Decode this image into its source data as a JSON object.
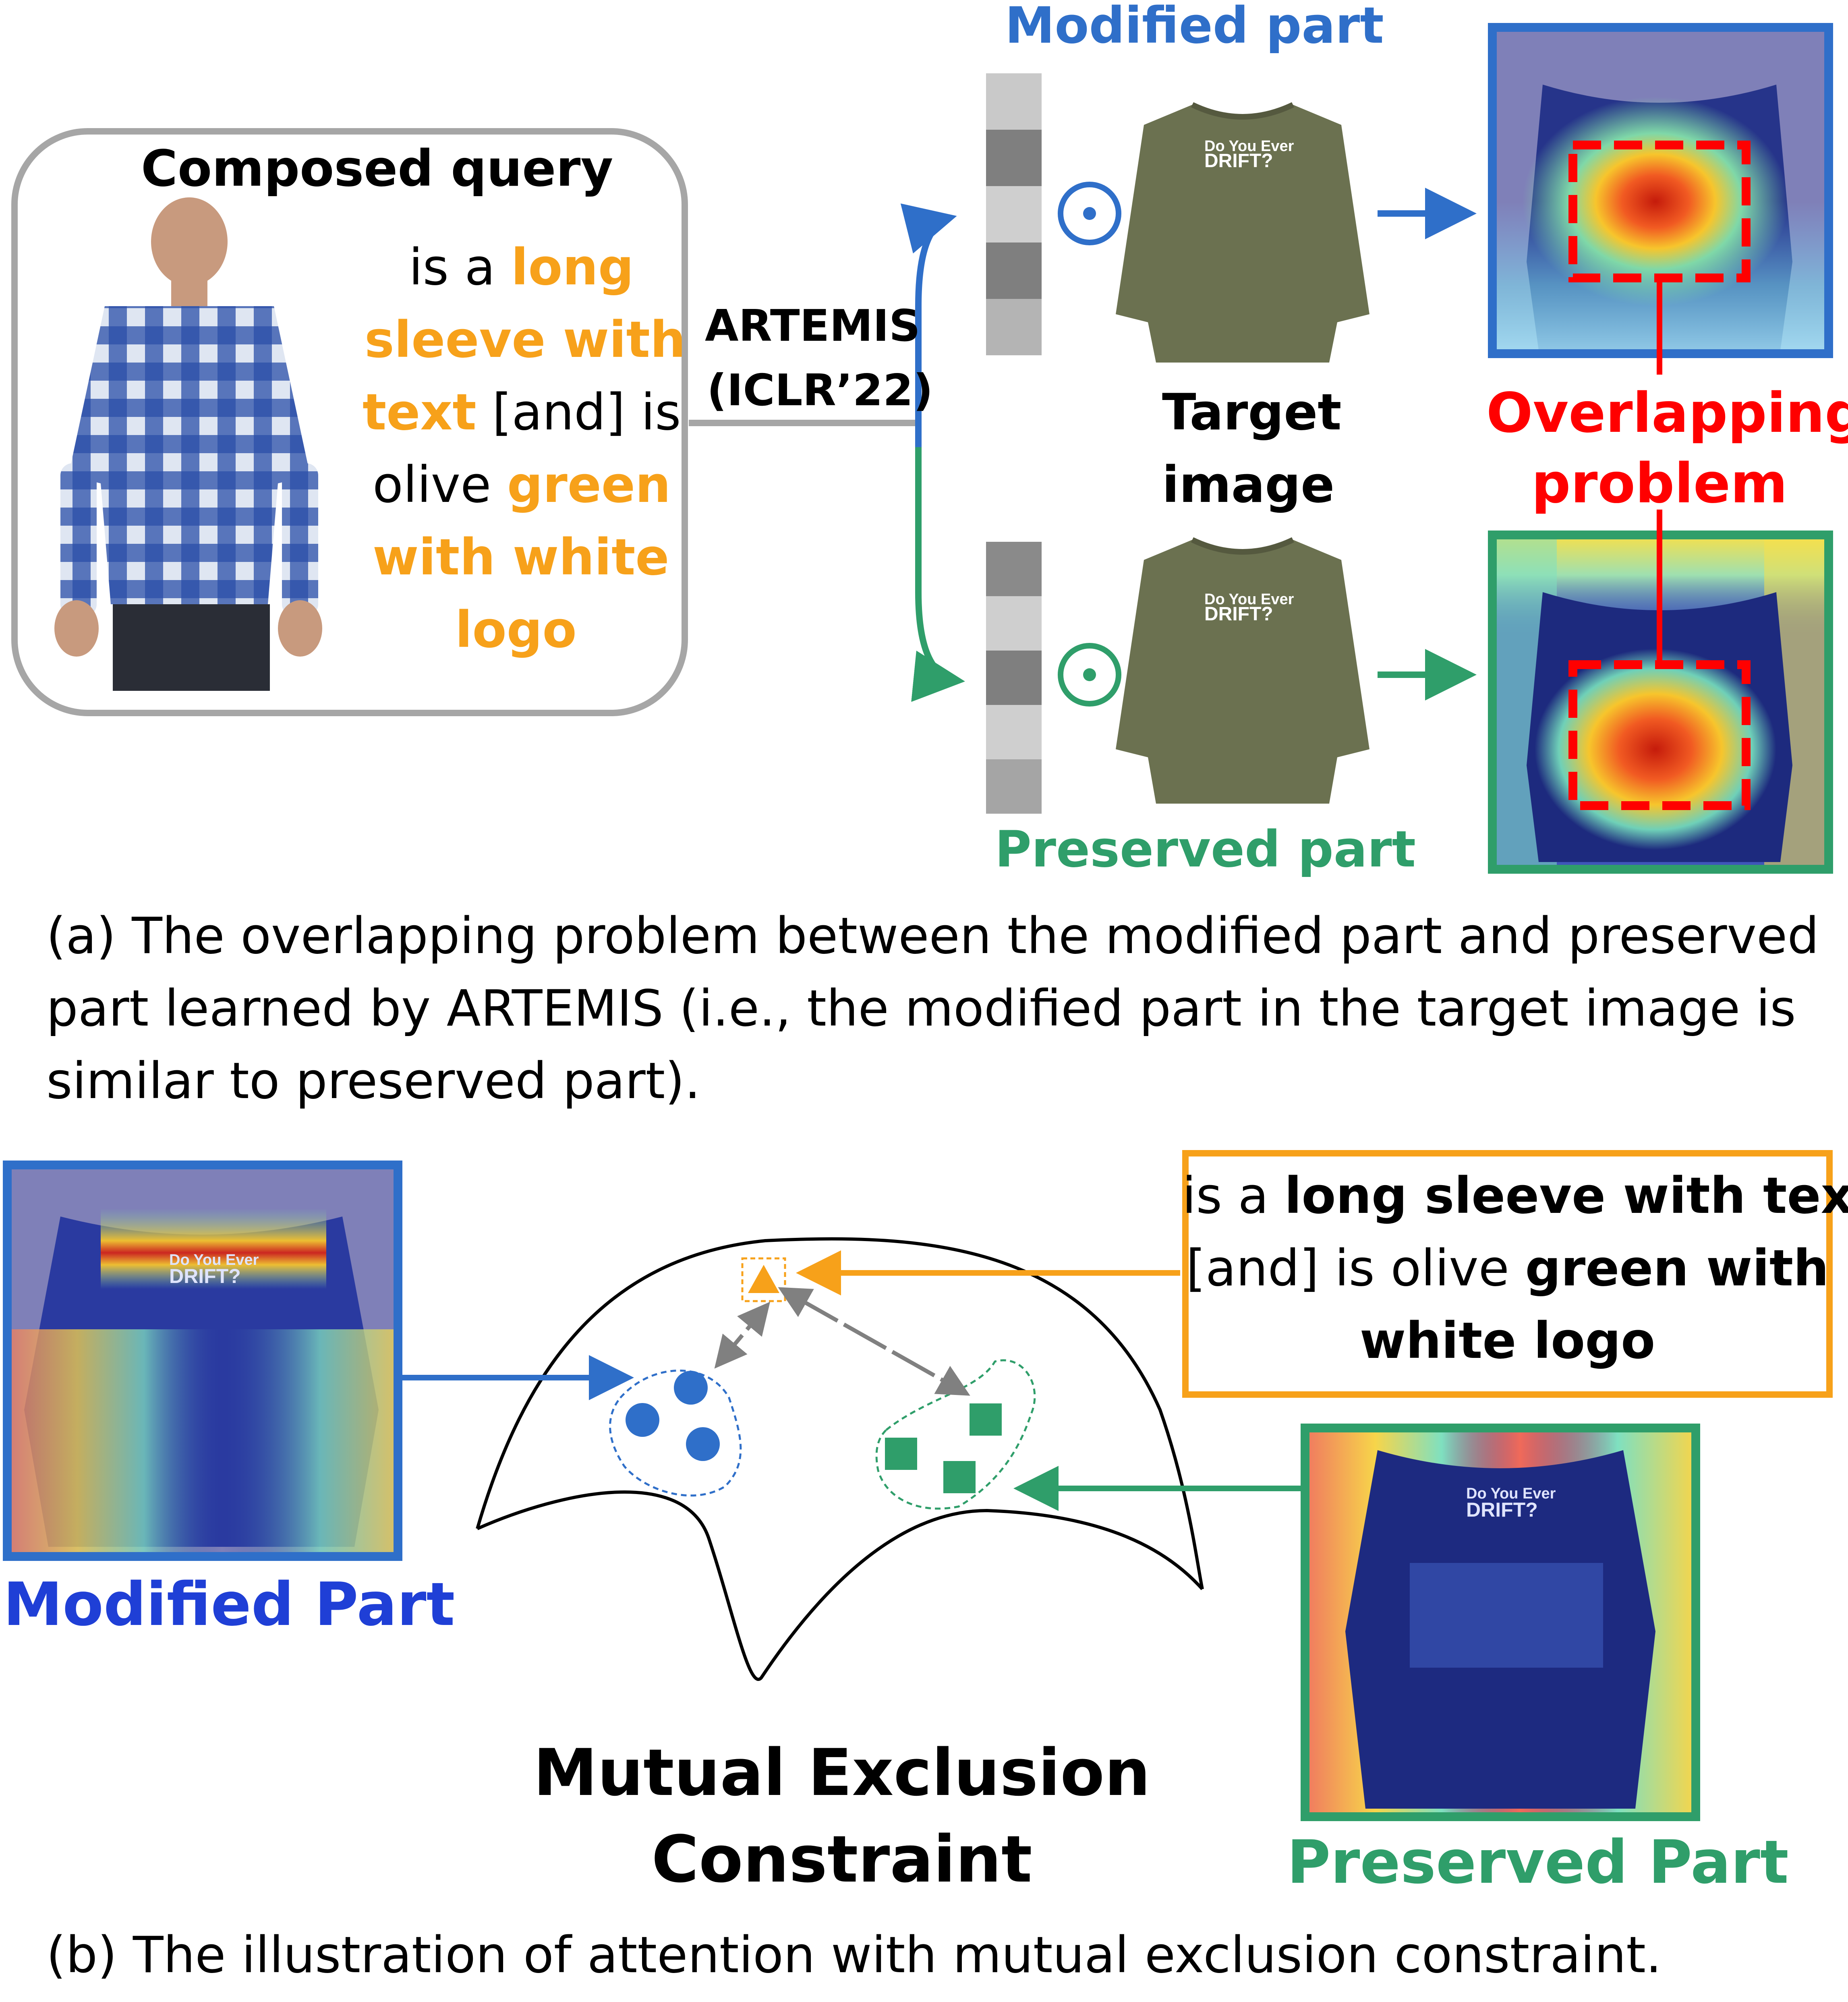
{
  "part_a": {
    "query_title": "Composed query",
    "query_text": [
      {
        "text": "is a ",
        "color": "#000000"
      },
      {
        "text": "long",
        "color": "#f7a11a"
      },
      {
        "text": "sleeve with",
        "color": "#f7a11a"
      },
      {
        "text": "text",
        "color": "#f7a11a"
      },
      {
        "text": " [and] is",
        "color": "#000000"
      },
      {
        "text": "olive ",
        "color": "#000000"
      },
      {
        "text": "green",
        "color": "#f7a11a"
      },
      {
        "text": "with white",
        "color": "#f7a11a"
      },
      {
        "text": "logo",
        "color": "#f7a11a"
      }
    ],
    "model_line1": "ARTEMIS",
    "model_line2": "(ICLR’22)",
    "modified_part_label": "Modified part",
    "preserved_part_label": "Preserved part",
    "target_image_line1": "Target",
    "target_image_line2": "image",
    "overlap_line1": "Overlapping",
    "overlap_line2": "problem",
    "operator_symbol": "⊙",
    "shirt_logo_line1": "Do You Ever",
    "shirt_logo_line2": "DRIFT?",
    "caption_lines": [
      "(a) The overlapping problem between the modified part and preserved",
      "part learned by ARTEMIS (i.e., the modified part in the target image is",
      "similar to preserved part)."
    ]
  },
  "part_b": {
    "modified_label": "Modified Part",
    "preserved_label": "Preserved Part",
    "text_box": {
      "line1_normal": "is a ",
      "line1_bold": "long sleeve with text",
      "line2_normal": "[and] is olive ",
      "line2_bold": "green with",
      "line3_bold": "white logo"
    },
    "center_title_line1": "Mutual Exclusion",
    "center_title_line2": "Constraint",
    "caption": "(b) The illustration of attention with mutual exclusion constraint."
  },
  "colors": {
    "orange": "#f7a11a",
    "blue": "#2f6fc9",
    "dark_blue": "#1f3fd6",
    "green": "#2f9e6a",
    "red": "#ff0000",
    "gray": "#a6a6a6",
    "olive_shirt": "#6b7150",
    "navy_shirt": "#1b2a6b"
  }
}
